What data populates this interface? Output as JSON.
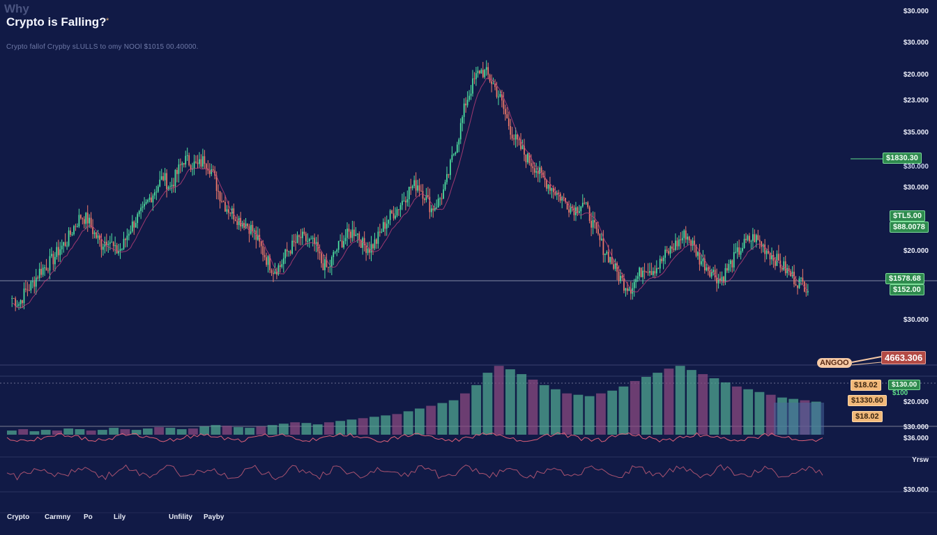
{
  "header": {
    "small_title": "Why",
    "title": "Crypto is Falling?",
    "title_mark": "*",
    "subtitle": "Crypto fallof Crypby sLULLS to omy NOOl $1015 00.40000."
  },
  "right_axis": {
    "labels": [
      "$30.000",
      "$30.000",
      "$20.000",
      "$23.000",
      "$35.000",
      "$30.000",
      "$30.000",
      "$20.000",
      "$30.000",
      "$20.000",
      "$30.000",
      "$36.000",
      "Yrsw",
      "$30.000"
    ]
  },
  "badges": {
    "price_top": "$1830.30",
    "price_mid_1": "$TL5.00",
    "price_mid_2": "$88.0078",
    "price_low_1": "$1578.68",
    "price_low_2": "$152.00",
    "red_price": "4663.306",
    "oval_tag": "ANGOO",
    "orange_1": "$18.02",
    "orange_2": "$1330.60",
    "orange_3": "$18.02",
    "green_small_1": "$130.00",
    "green_small_2": "$100"
  },
  "bottom_nav": {
    "labels": [
      "Crypto",
      "Carmny",
      "Po",
      "Lily",
      "Unfility",
      "Payby"
    ]
  },
  "colors": {
    "background": "#111a46",
    "up": "#4fe3a1",
    "down": "#f07a6a",
    "ma": "#c2407a",
    "volume_up": "#4fa690",
    "volume_down": "#8a4a80",
    "accent_green": "#2e8a4e",
    "accent_red": "#b24a45",
    "accent_orange": "#f2b97a"
  },
  "chart_data": {
    "type": "candlestick",
    "title": "Crypto is Falling?",
    "close_path": [
      40,
      37,
      44,
      48,
      55,
      58,
      62,
      68,
      72,
      80,
      86,
      84,
      76,
      70,
      74,
      66,
      68,
      78,
      84,
      88,
      96,
      102,
      108,
      102,
      110,
      118,
      116,
      114,
      118,
      112,
      100,
      92,
      88,
      84,
      82,
      78,
      70,
      62,
      56,
      58,
      66,
      70,
      74,
      72,
      70,
      60,
      56,
      66,
      72,
      76,
      78,
      70,
      68,
      72,
      80,
      86,
      90,
      96,
      102,
      104,
      98,
      90,
      94,
      102,
      118,
      132,
      150,
      160,
      168,
      166,
      160,
      152,
      140,
      130,
      124,
      118,
      114,
      108,
      104,
      100,
      96,
      92,
      90,
      94,
      86,
      76,
      68,
      62,
      54,
      48,
      46,
      52,
      58,
      56,
      58,
      64,
      68,
      72,
      76,
      70,
      62,
      58,
      54,
      50,
      56,
      62,
      68,
      72,
      74,
      70,
      66,
      62,
      58,
      54,
      50,
      48,
      46
    ],
    "volume": [
      6,
      8,
      5,
      7,
      6,
      9,
      8,
      6,
      7,
      10,
      8,
      7,
      9,
      11,
      10,
      8,
      9,
      12,
      14,
      13,
      11,
      10,
      12,
      14,
      16,
      18,
      17,
      15,
      18,
      20,
      22,
      24,
      26,
      28,
      30,
      34,
      38,
      42,
      46,
      50,
      60,
      72,
      90,
      100,
      95,
      88,
      80,
      72,
      66,
      60,
      58,
      56,
      60,
      64,
      70,
      78,
      84,
      90,
      96,
      100,
      94,
      88,
      82,
      76,
      70,
      66,
      62,
      58,
      54,
      52,
      50,
      48
    ],
    "y_axis_labels": [
      "$30.000",
      "$30.000",
      "$20.000",
      "$23.000",
      "$35.000",
      "$30.000",
      "$30.000",
      "$20.000",
      "$30.000",
      "$20.000",
      "$30.000",
      "$36.000",
      "$30.000"
    ],
    "grid": false
  }
}
